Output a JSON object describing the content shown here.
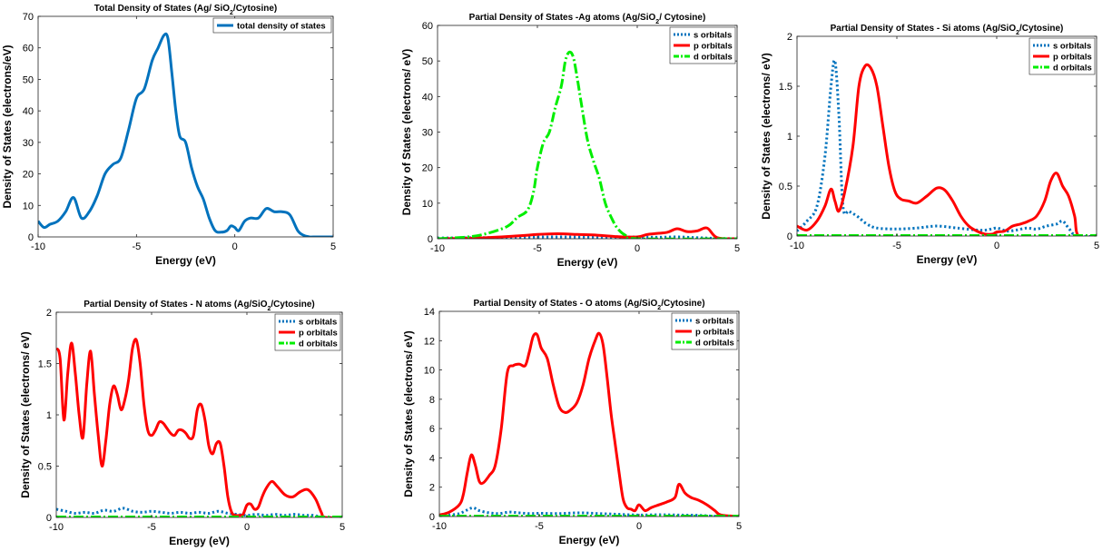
{
  "chart_data": [
    {
      "type": "line",
      "title_parts": [
        "Total Density of States (Ag/ SiO",
        "2",
        "/Cytosine)"
      ],
      "xlabel": "Energy (eV)",
      "ylabel": "Density of States (electrons/eV)",
      "xlim": [
        -10,
        5
      ],
      "ylim": [
        0,
        70
      ],
      "xticks": [
        -10,
        -5,
        0,
        5
      ],
      "yticks": [
        0,
        10,
        20,
        30,
        40,
        50,
        60,
        70
      ],
      "legend": "top-right",
      "series": [
        {
          "name": "total density of states",
          "color": "#0072BD",
          "dash": "solid",
          "x": [
            -10,
            -9.7,
            -9.4,
            -9,
            -8.6,
            -8.2,
            -7.8,
            -7.4,
            -7,
            -6.6,
            -6.2,
            -5.8,
            -5.4,
            -5,
            -4.6,
            -4.2,
            -3.9,
            -3.6,
            -3.4,
            -3.2,
            -3,
            -2.8,
            -2.5,
            -2.2,
            -1.9,
            -1.6,
            -1.3,
            -1,
            -0.7,
            -0.4,
            -0.2,
            0,
            0.2,
            0.5,
            0.8,
            1.2,
            1.6,
            2,
            2.4,
            2.8,
            3.2,
            3.5,
            3.8,
            4,
            5
          ],
          "y": [
            5,
            3,
            4,
            5,
            8,
            12.5,
            6,
            8,
            13,
            20,
            23,
            25,
            34,
            44,
            47,
            56,
            60,
            64,
            63,
            52,
            40,
            32,
            30,
            22,
            16,
            12,
            6,
            2,
            1.5,
            2,
            3.5,
            3,
            2,
            5,
            6,
            6,
            9,
            8,
            8,
            7,
            2,
            0.5,
            0,
            0,
            0
          ]
        }
      ]
    },
    {
      "type": "line",
      "title_parts": [
        "Partial Density of States -Ag atoms (Ag/SiO",
        "2",
        "/ Cytosine)"
      ],
      "xlabel": "Energy (eV)",
      "ylabel": "Density of States (electrons/ eV)",
      "xlim": [
        -10,
        5
      ],
      "ylim": [
        0,
        60
      ],
      "xticks": [
        -10,
        -5,
        0,
        5
      ],
      "yticks": [
        0,
        10,
        20,
        30,
        40,
        50,
        60
      ],
      "legend": "top-right",
      "series": [
        {
          "name": "s orbitals",
          "color": "#0072BD",
          "dash": "dotted",
          "x": [
            -10,
            -8,
            -6,
            -4,
            -2,
            0,
            1,
            2,
            3,
            4,
            5
          ],
          "y": [
            0.2,
            0.3,
            0.4,
            0.5,
            0.4,
            0.5,
            0.4,
            0.5,
            0.3,
            0.1,
            0
          ]
        },
        {
          "name": "p orbitals",
          "color": "#ff0000",
          "dash": "solid",
          "x": [
            -10,
            -8,
            -6,
            -5,
            -4,
            -3,
            -2,
            -1,
            0,
            0.5,
            1,
            1.5,
            2,
            2.5,
            3,
            3.5,
            4,
            5
          ],
          "y": [
            0,
            0.2,
            0.8,
            1.2,
            1.4,
            1.2,
            1,
            0.6,
            0.5,
            1.2,
            1.5,
            1.8,
            2.8,
            2,
            2.2,
            3,
            0.3,
            0
          ]
        },
        {
          "name": "d orbitals",
          "color": "#00ee00",
          "dash": "dashdot",
          "x": [
            -10,
            -8.5,
            -7.5,
            -6.5,
            -6,
            -5.5,
            -5.2,
            -5,
            -4.7,
            -4.4,
            -4.1,
            -3.8,
            -3.6,
            -3.4,
            -3.2,
            -3,
            -2.8,
            -2.5,
            -2.2,
            -1.9,
            -1.6,
            -1.3,
            -1,
            -0.6,
            0,
            5
          ],
          "y": [
            0,
            0.5,
            1.5,
            3.5,
            6,
            8,
            13,
            20,
            27,
            30,
            37,
            43,
            50,
            52.5,
            51,
            45,
            38,
            28,
            22,
            17,
            10,
            6,
            3,
            1,
            0,
            0
          ]
        }
      ]
    },
    {
      "type": "line",
      "title_parts": [
        "Partial Density of States - Si atoms (Ag/SiO",
        "2",
        "/Cytosine)"
      ],
      "xlabel": "Energy (eV)",
      "ylabel": "Density of States (electrons/ eV)",
      "xlim": [
        -10,
        5
      ],
      "ylim": [
        0,
        2
      ],
      "xticks": [
        -10,
        -5,
        0,
        5
      ],
      "yticks": [
        0,
        0.5,
        1,
        1.5,
        2
      ],
      "legend": "top-right",
      "series": [
        {
          "name": "s orbitals",
          "color": "#0072BD",
          "dash": "dotted",
          "x": [
            -10,
            -9.5,
            -9,
            -8.6,
            -8.3,
            -8.1,
            -7.9,
            -7.7,
            -7.4,
            -7,
            -6.5,
            -6,
            -5,
            -4,
            -3,
            -2,
            -1,
            -0.5,
            0,
            0.5,
            1,
            1.5,
            2,
            2.5,
            3,
            3.3,
            3.6,
            4,
            5
          ],
          "y": [
            0.05,
            0.15,
            0.3,
            0.8,
            1.5,
            1.75,
            1.2,
            0.3,
            0.25,
            0.2,
            0.12,
            0.08,
            0.07,
            0.08,
            0.1,
            0.08,
            0.06,
            0.06,
            0.08,
            0.05,
            0.06,
            0.08,
            0.07,
            0.1,
            0.12,
            0.15,
            0.08,
            0,
            0
          ]
        },
        {
          "name": "p orbitals",
          "color": "#ff0000",
          "dash": "solid",
          "x": [
            -10,
            -9.5,
            -9,
            -8.6,
            -8.3,
            -8.1,
            -7.9,
            -7.6,
            -7.2,
            -6.9,
            -6.6,
            -6.3,
            -6,
            -5.7,
            -5.4,
            -5.1,
            -4.8,
            -4.4,
            -4,
            -3.5,
            -3,
            -2.6,
            -2.2,
            -1.8,
            -1.4,
            -1,
            -0.6,
            -0.2,
            0,
            0.4,
            0.8,
            1.2,
            1.6,
            2,
            2.4,
            2.7,
            3,
            3.3,
            3.6,
            3.9,
            4.1,
            5
          ],
          "y": [
            0.1,
            0.06,
            0.15,
            0.3,
            0.47,
            0.35,
            0.25,
            0.45,
            0.9,
            1.5,
            1.7,
            1.68,
            1.5,
            1.1,
            0.7,
            0.45,
            0.37,
            0.35,
            0.33,
            0.4,
            0.48,
            0.46,
            0.35,
            0.2,
            0.1,
            0.05,
            0.02,
            0.02,
            0.04,
            0.05,
            0.1,
            0.12,
            0.15,
            0.2,
            0.35,
            0.55,
            0.63,
            0.5,
            0.4,
            0.2,
            0,
            0
          ]
        },
        {
          "name": "d orbitals",
          "color": "#00ee00",
          "dash": "dashdot",
          "x": [
            -10,
            5
          ],
          "y": [
            0.005,
            0.005
          ]
        }
      ]
    },
    {
      "type": "line",
      "title_parts": [
        "Partial Density of States - N atoms (Ag/SiO",
        "2",
        "/Cytosine)"
      ],
      "xlabel": "Energy (eV)",
      "ylabel": "Density of States (electrons/ eV)",
      "xlim": [
        -10,
        5
      ],
      "ylim": [
        0,
        2
      ],
      "xticks": [
        -10,
        -5,
        0,
        5
      ],
      "yticks": [
        0,
        0.5,
        1,
        1.5,
        2
      ],
      "legend": "top-right",
      "series": [
        {
          "name": "s orbitals",
          "color": "#0072BD",
          "dash": "dotted",
          "x": [
            -10,
            -9.5,
            -9,
            -8.5,
            -8,
            -7.5,
            -7,
            -6.5,
            -6,
            -5.5,
            -5,
            -4.5,
            -4,
            -3.5,
            -3,
            -2.5,
            -2,
            -1.5,
            -1,
            -0.5,
            0,
            0.5,
            1,
            1.5,
            2,
            2.5,
            3,
            3.5,
            4,
            5
          ],
          "y": [
            0.08,
            0.06,
            0.04,
            0.05,
            0.04,
            0.07,
            0.06,
            0.09,
            0.06,
            0.05,
            0.06,
            0.05,
            0.04,
            0.05,
            0.04,
            0.05,
            0.04,
            0.06,
            0.04,
            0.03,
            0.02,
            0.03,
            0.02,
            0.03,
            0.02,
            0.03,
            0.02,
            0.02,
            0,
            0
          ]
        },
        {
          "name": "p orbitals",
          "color": "#ff0000",
          "dash": "solid",
          "x": [
            -10,
            -9.8,
            -9.6,
            -9.4,
            -9.2,
            -9,
            -8.8,
            -8.6,
            -8.4,
            -8.2,
            -8,
            -7.8,
            -7.6,
            -7.4,
            -7.2,
            -7,
            -6.8,
            -6.6,
            -6.4,
            -6.2,
            -6,
            -5.8,
            -5.6,
            -5.4,
            -5.2,
            -5,
            -4.8,
            -4.6,
            -4.4,
            -4.2,
            -4,
            -3.8,
            -3.6,
            -3.4,
            -3.2,
            -3,
            -2.8,
            -2.6,
            -2.4,
            -2.2,
            -2,
            -1.8,
            -1.6,
            -1.4,
            -1.2,
            -1,
            -0.8,
            -0.6,
            -0.4,
            -0.2,
            0,
            0.2,
            0.4,
            0.6,
            0.8,
            1,
            1.3,
            1.6,
            2,
            2.4,
            2.8,
            3.2,
            3.6,
            3.9,
            4.1,
            5
          ],
          "y": [
            1.65,
            1.55,
            0.95,
            1.4,
            1.7,
            1.4,
            1.0,
            0.78,
            1.3,
            1.62,
            1.2,
            0.8,
            0.5,
            0.75,
            1.1,
            1.28,
            1.2,
            1.05,
            1.15,
            1.35,
            1.65,
            1.73,
            1.5,
            1.1,
            0.85,
            0.8,
            0.85,
            0.93,
            0.92,
            0.87,
            0.82,
            0.8,
            0.85,
            0.85,
            0.82,
            0.77,
            0.8,
            1.05,
            1.1,
            0.95,
            0.7,
            0.62,
            0.72,
            0.72,
            0.5,
            0.2,
            0.05,
            0.02,
            0.02,
            0.03,
            0.12,
            0.13,
            0.08,
            0.1,
            0.2,
            0.28,
            0.35,
            0.3,
            0.22,
            0.2,
            0.25,
            0.27,
            0.18,
            0.05,
            0,
            0
          ]
        },
        {
          "name": "d orbitals",
          "color": "#00ee00",
          "dash": "dashdot",
          "x": [
            -10,
            5
          ],
          "y": [
            0.005,
            0.005
          ]
        }
      ]
    },
    {
      "type": "line",
      "title_parts": [
        "Partial Density of States -  O atoms (Ag/SiO",
        "2",
        "/Cytosine)"
      ],
      "xlabel": "Energy (eV)",
      "ylabel": "Density of States (electrons/ eV)",
      "xlim": [
        -10,
        5
      ],
      "ylim": [
        0,
        14
      ],
      "xticks": [
        -10,
        -5,
        0,
        5
      ],
      "yticks": [
        0,
        2,
        4,
        6,
        8,
        10,
        12,
        14
      ],
      "legend": "top-right",
      "series": [
        {
          "name": "s orbitals",
          "color": "#0072BD",
          "dash": "dotted",
          "x": [
            -10,
            -9.5,
            -9,
            -8.6,
            -8.3,
            -8,
            -7.5,
            -7,
            -6.5,
            -6,
            -5.5,
            -5,
            -4,
            -3,
            -2,
            -1,
            0,
            1,
            2,
            3,
            4,
            5
          ],
          "y": [
            0.05,
            0.1,
            0.2,
            0.45,
            0.6,
            0.4,
            0.25,
            0.2,
            0.3,
            0.25,
            0.2,
            0.22,
            0.2,
            0.25,
            0.2,
            0.15,
            0.1,
            0.12,
            0.1,
            0.08,
            0,
            0
          ]
        },
        {
          "name": "p orbitals",
          "color": "#ff0000",
          "dash": "solid",
          "x": [
            -10,
            -9.5,
            -9,
            -8.8,
            -8.6,
            -8.4,
            -8.2,
            -8,
            -7.8,
            -7.5,
            -7.2,
            -6.9,
            -6.6,
            -6.3,
            -6,
            -5.7,
            -5.5,
            -5.3,
            -5.1,
            -4.9,
            -4.6,
            -4.3,
            -4,
            -3.7,
            -3.4,
            -3.1,
            -2.8,
            -2.5,
            -2.2,
            -2,
            -1.8,
            -1.6,
            -1.4,
            -1.2,
            -1,
            -0.8,
            -0.6,
            -0.4,
            -0.2,
            0,
            0.3,
            0.6,
            1,
            1.4,
            1.8,
            2,
            2.3,
            2.6,
            3,
            3.4,
            3.8,
            4.1,
            5
          ],
          "y": [
            0.1,
            0.3,
            0.8,
            1.5,
            3,
            4.2,
            3.5,
            2.4,
            2.3,
            2.8,
            3.5,
            6,
            9.8,
            10.3,
            10.4,
            10.3,
            11.2,
            12.3,
            12.4,
            11.5,
            10.8,
            9,
            7.5,
            7.1,
            7.3,
            7.8,
            9,
            10.8,
            12,
            12.5,
            11.7,
            9.5,
            7,
            5,
            3,
            1.2,
            0.6,
            0.5,
            0.4,
            0.8,
            0.4,
            0.6,
            0.8,
            1,
            1.3,
            2.2,
            1.6,
            1.3,
            1.1,
            0.8,
            0.4,
            0.1,
            0
          ]
        },
        {
          "name": "d orbitals",
          "color": "#00ee00",
          "dash": "dashdot",
          "x": [
            -10,
            5
          ],
          "y": [
            0.02,
            0.02
          ]
        }
      ]
    }
  ]
}
